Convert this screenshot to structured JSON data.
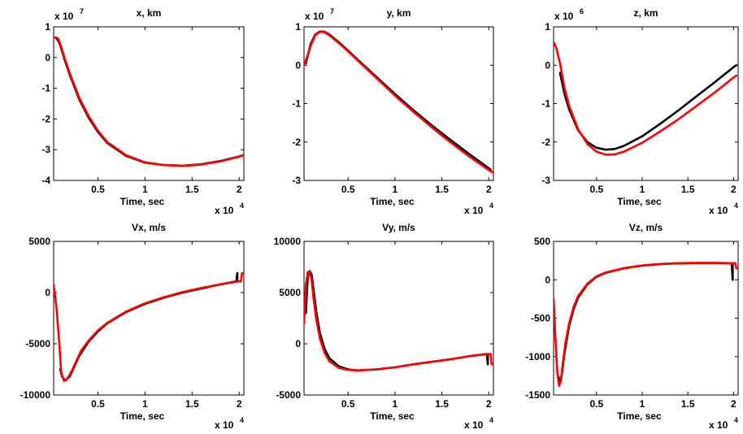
{
  "chart_data": [
    {
      "type": "line",
      "title": "x, km",
      "xlabel": "Time, sec",
      "ylabel": "",
      "x_multiplier": "x 10",
      "x_multiplier_exp": "4",
      "y_multiplier": "x 10",
      "y_multiplier_exp": "7",
      "xlim": [
        0.03,
        2.05
      ],
      "ylim": [
        -4,
        1
      ],
      "xticks": [
        {
          "v": 0.5,
          "label": "0.5"
        },
        {
          "v": 1,
          "label": "1"
        },
        {
          "v": 1.5,
          "label": "1.5"
        },
        {
          "v": 2,
          "label": "2"
        }
      ],
      "yticks": [
        {
          "v": -4,
          "label": "-4"
        },
        {
          "v": -3,
          "label": "-3"
        },
        {
          "v": -2,
          "label": "-2"
        },
        {
          "v": -1,
          "label": "-1"
        },
        {
          "v": 0,
          "label": "0"
        },
        {
          "v": 1,
          "label": "1"
        }
      ],
      "series": [
        {
          "color": "#000000",
          "x": [
            0.05,
            0.08,
            0.1,
            0.15,
            0.2,
            0.3,
            0.4,
            0.5,
            0.6,
            0.8,
            1.0,
            1.2,
            1.4,
            1.5,
            1.6,
            1.8,
            2.0,
            2.05
          ],
          "y": [
            0.65,
            0.55,
            0.4,
            -0.1,
            -0.55,
            -1.35,
            -1.95,
            -2.42,
            -2.78,
            -3.2,
            -3.42,
            -3.5,
            -3.52,
            -3.5,
            -3.47,
            -3.37,
            -3.22,
            -3.17
          ]
        },
        {
          "color": "#ff0000",
          "x": [
            0.03,
            0.06,
            0.08,
            0.1,
            0.15,
            0.2,
            0.3,
            0.4,
            0.5,
            0.6,
            0.8,
            1.0,
            1.2,
            1.4,
            1.5,
            1.6,
            1.8,
            2.0,
            2.05
          ],
          "y": [
            0.65,
            0.65,
            0.6,
            0.45,
            -0.05,
            -0.5,
            -1.3,
            -1.9,
            -2.38,
            -2.75,
            -3.18,
            -3.41,
            -3.5,
            -3.52,
            -3.51,
            -3.48,
            -3.38,
            -3.23,
            -3.17
          ]
        }
      ]
    },
    {
      "type": "line",
      "title": "y, km",
      "xlabel": "Time, sec",
      "ylabel": "",
      "x_multiplier": "x 10",
      "x_multiplier_exp": "4",
      "y_multiplier": "x 10",
      "y_multiplier_exp": "7",
      "xlim": [
        0.03,
        2.05
      ],
      "ylim": [
        -3,
        1
      ],
      "xticks": [
        {
          "v": 0.5,
          "label": "0.5"
        },
        {
          "v": 1,
          "label": "1"
        },
        {
          "v": 1.5,
          "label": "1.5"
        },
        {
          "v": 2,
          "label": "2"
        }
      ],
      "yticks": [
        {
          "v": -3,
          "label": "-3"
        },
        {
          "v": -2,
          "label": "-2"
        },
        {
          "v": -1,
          "label": "-1"
        },
        {
          "v": 0,
          "label": "0"
        },
        {
          "v": 1,
          "label": "1"
        }
      ],
      "series": [
        {
          "color": "#000000",
          "x": [
            0.05,
            0.08,
            0.1,
            0.15,
            0.2,
            0.25,
            0.3,
            0.4,
            0.5,
            0.6,
            0.8,
            1.0,
            1.2,
            1.4,
            1.6,
            1.8,
            2.0,
            2.02
          ],
          "y": [
            0.05,
            0.35,
            0.55,
            0.8,
            0.88,
            0.87,
            0.8,
            0.6,
            0.38,
            0.15,
            -0.3,
            -0.75,
            -1.18,
            -1.58,
            -1.96,
            -2.33,
            -2.68,
            -2.72
          ]
        },
        {
          "color": "#ff0000",
          "x": [
            0.03,
            0.06,
            0.1,
            0.15,
            0.2,
            0.25,
            0.3,
            0.4,
            0.5,
            0.6,
            0.8,
            1.0,
            1.2,
            1.4,
            1.6,
            1.8,
            2.0,
            2.05
          ],
          "y": [
            0.0,
            0.2,
            0.5,
            0.78,
            0.87,
            0.86,
            0.78,
            0.58,
            0.36,
            0.13,
            -0.33,
            -0.79,
            -1.22,
            -1.63,
            -2.02,
            -2.39,
            -2.73,
            -2.8
          ]
        }
      ]
    },
    {
      "type": "line",
      "title": "z, km",
      "xlabel": "Time, sec",
      "ylabel": "",
      "x_multiplier": "x 10",
      "x_multiplier_exp": "4",
      "y_multiplier": "x 10",
      "y_multiplier_exp": "6",
      "xlim": [
        0.03,
        2.05
      ],
      "ylim": [
        -3,
        1
      ],
      "xticks": [
        {
          "v": 0.5,
          "label": "0.5"
        },
        {
          "v": 1,
          "label": "1"
        },
        {
          "v": 1.5,
          "label": "1.5"
        },
        {
          "v": 2,
          "label": "2"
        }
      ],
      "yticks": [
        {
          "v": -3,
          "label": "-3"
        },
        {
          "v": -2,
          "label": "-2"
        },
        {
          "v": -1,
          "label": "-1"
        },
        {
          "v": 0,
          "label": "0"
        },
        {
          "v": 1,
          "label": "1"
        }
      ],
      "series": [
        {
          "color": "#000000",
          "x": [
            0.1,
            0.15,
            0.2,
            0.3,
            0.4,
            0.5,
            0.6,
            0.7,
            0.8,
            1.0,
            1.2,
            1.4,
            1.6,
            1.8,
            2.0,
            2.03
          ],
          "y": [
            -0.2,
            -0.75,
            -1.15,
            -1.7,
            -2.0,
            -2.15,
            -2.2,
            -2.18,
            -2.1,
            -1.85,
            -1.52,
            -1.17,
            -0.8,
            -0.43,
            -0.05,
            0.0
          ]
        },
        {
          "color": "#ff0000",
          "x": [
            0.03,
            0.06,
            0.1,
            0.15,
            0.2,
            0.3,
            0.4,
            0.5,
            0.6,
            0.7,
            0.8,
            1.0,
            1.2,
            1.4,
            1.6,
            1.8,
            2.0,
            2.03
          ],
          "y": [
            0.6,
            0.45,
            0.05,
            -0.6,
            -1.05,
            -1.68,
            -2.05,
            -2.25,
            -2.33,
            -2.32,
            -2.25,
            -2.02,
            -1.72,
            -1.4,
            -1.05,
            -0.7,
            -0.32,
            -0.27
          ]
        }
      ]
    },
    {
      "type": "line",
      "title": "Vx, m/s",
      "xlabel": "Time, sec",
      "ylabel": "",
      "x_multiplier": "x 10",
      "x_multiplier_exp": "4",
      "xlim": [
        0.03,
        2.05
      ],
      "ylim": [
        -10000,
        5000
      ],
      "xticks": [
        {
          "v": 0.5,
          "label": "0.5"
        },
        {
          "v": 1,
          "label": "1"
        },
        {
          "v": 1.5,
          "label": "1.5"
        },
        {
          "v": 2,
          "label": "2"
        }
      ],
      "yticks": [
        {
          "v": -10000,
          "label": "-10000"
        },
        {
          "v": -5000,
          "label": "-5000"
        },
        {
          "v": 0,
          "label": "0"
        },
        {
          "v": 5000,
          "label": "5000"
        }
      ],
      "series": [
        {
          "color": "#000000",
          "x": [
            0.1,
            0.12,
            0.15,
            0.2,
            0.25,
            0.3,
            0.4,
            0.5,
            0.6,
            0.8,
            1.0,
            1.2,
            1.4,
            1.6,
            1.8,
            1.97,
            1.98,
            1.98
          ],
          "y": [
            -7500,
            -8200,
            -8600,
            -8200,
            -7200,
            -6200,
            -4800,
            -3800,
            -3000,
            -1900,
            -1100,
            -500,
            0,
            400,
            800,
            1100,
            1900,
            1100
          ]
        },
        {
          "color": "#ff0000",
          "x": [
            0.03,
            0.06,
            0.09,
            0.11,
            0.14,
            0.17,
            0.22,
            0.27,
            0.32,
            0.4,
            0.5,
            0.6,
            0.8,
            1.0,
            1.2,
            1.4,
            1.6,
            1.8,
            2.0,
            2.02,
            2.03,
            2.04,
            2.05
          ],
          "y": [
            800,
            -1500,
            -5000,
            -7800,
            -8600,
            -8500,
            -7700,
            -6700,
            -5700,
            -4700,
            -3700,
            -2950,
            -1850,
            -1050,
            -450,
            50,
            450,
            800,
            1100,
            1100,
            1900,
            1900,
            1900
          ]
        }
      ]
    },
    {
      "type": "line",
      "title": "Vy, m/s",
      "xlabel": "Time, sec",
      "ylabel": "",
      "x_multiplier": "x 10",
      "x_multiplier_exp": "4",
      "xlim": [
        0.03,
        2.05
      ],
      "ylim": [
        -5000,
        10000
      ],
      "xticks": [
        {
          "v": 0.5,
          "label": "0.5"
        },
        {
          "v": 1,
          "label": "1"
        },
        {
          "v": 1.5,
          "label": "1.5"
        },
        {
          "v": 2,
          "label": "2"
        }
      ],
      "yticks": [
        {
          "v": -5000,
          "label": "-5000"
        },
        {
          "v": 0,
          "label": "0"
        },
        {
          "v": 5000,
          "label": "5000"
        },
        {
          "v": 10000,
          "label": "10000"
        }
      ],
      "series": [
        {
          "color": "#000000",
          "x": [
            0.05,
            0.07,
            0.09,
            0.11,
            0.13,
            0.16,
            0.2,
            0.25,
            0.3,
            0.4,
            0.5,
            0.6,
            0.8,
            1.0,
            1.2,
            1.4,
            1.6,
            1.8,
            1.98,
            1.99,
            1.99
          ],
          "y": [
            3000,
            6500,
            7100,
            6800,
            5400,
            3200,
            1000,
            -500,
            -1400,
            -2200,
            -2500,
            -2600,
            -2500,
            -2300,
            -2000,
            -1750,
            -1500,
            -1200,
            -1000,
            -2000,
            -1100
          ]
        },
        {
          "color": "#ff0000",
          "x": [
            0.03,
            0.05,
            0.07,
            0.09,
            0.11,
            0.13,
            0.16,
            0.2,
            0.25,
            0.3,
            0.4,
            0.5,
            0.6,
            0.8,
            1.0,
            1.2,
            1.4,
            1.6,
            1.8,
            2.0,
            2.02,
            2.03,
            2.05
          ],
          "y": [
            2000,
            5800,
            7000,
            7050,
            6300,
            4600,
            2400,
            500,
            -900,
            -1700,
            -2350,
            -2550,
            -2600,
            -2500,
            -2300,
            -2000,
            -1750,
            -1500,
            -1200,
            -1000,
            -1000,
            -2000,
            -2000
          ]
        }
      ]
    },
    {
      "type": "line",
      "title": "Vz, m/s",
      "xlabel": "Time, sec",
      "ylabel": "",
      "x_multiplier": "x 10",
      "x_multiplier_exp": "4",
      "xlim": [
        0.03,
        2.05
      ],
      "ylim": [
        -1500,
        500
      ],
      "xticks": [
        {
          "v": 0.5,
          "label": "0.5"
        },
        {
          "v": 1,
          "label": "1"
        },
        {
          "v": 1.5,
          "label": "1.5"
        },
        {
          "v": 2,
          "label": "2"
        }
      ],
      "yticks": [
        {
          "v": -1500,
          "label": "-1500"
        },
        {
          "v": -1000,
          "label": "-1000"
        },
        {
          "v": -500,
          "label": "-500"
        },
        {
          "v": 0,
          "label": "0"
        },
        {
          "v": 500,
          "label": "500"
        }
      ],
      "series": [
        {
          "color": "#000000",
          "x": [
            0.08,
            0.1,
            0.12,
            0.15,
            0.2,
            0.25,
            0.3,
            0.4,
            0.5,
            0.6,
            0.8,
            1.0,
            1.2,
            1.4,
            1.6,
            1.8,
            1.98,
            1.99,
            1.99
          ],
          "y": [
            -1250,
            -1330,
            -1230,
            -950,
            -600,
            -380,
            -230,
            -60,
            40,
            90,
            150,
            185,
            205,
            215,
            218,
            218,
            215,
            0,
            200
          ]
        },
        {
          "color": "#ff0000",
          "x": [
            0.03,
            0.05,
            0.07,
            0.09,
            0.11,
            0.13,
            0.16,
            0.2,
            0.25,
            0.3,
            0.4,
            0.5,
            0.6,
            0.8,
            1.0,
            1.2,
            1.4,
            1.6,
            1.8,
            2.0,
            2.02,
            2.03,
            2.05
          ],
          "y": [
            -250,
            -750,
            -1200,
            -1380,
            -1320,
            -1100,
            -820,
            -570,
            -350,
            -210,
            -50,
            45,
            95,
            152,
            187,
            206,
            216,
            219,
            219,
            216,
            215,
            150,
            150
          ]
        }
      ]
    }
  ]
}
